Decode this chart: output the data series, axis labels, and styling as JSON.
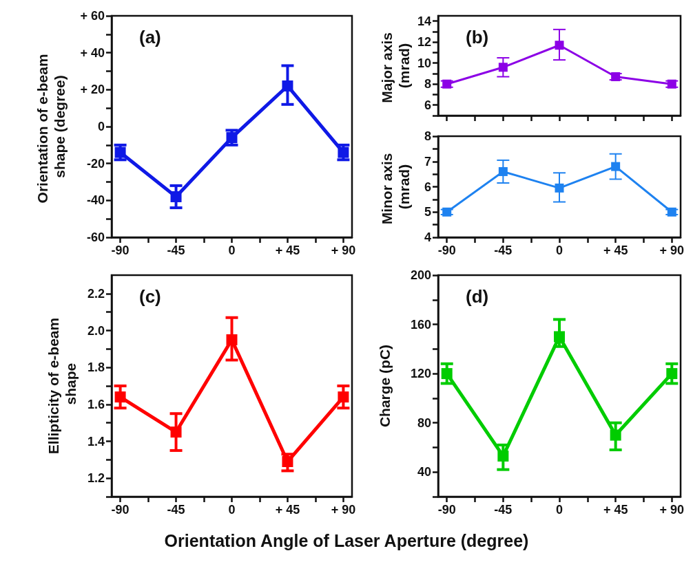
{
  "chart_data": [
    {
      "type": "line",
      "ylabel": "Orientation of e-beam shape (degree)",
      "annotations": [
        "(a)"
      ],
      "marker": "square",
      "line_style": "solid",
      "grid": false,
      "x": [
        -90,
        -45,
        0,
        45,
        90
      ],
      "xlim": [
        -97,
        97
      ],
      "xticks": [
        -90,
        {
          "value": -67.5,
          "label": null
        },
        -45,
        {
          "value": -22.5,
          "label": null
        },
        0,
        {
          "value": 22.5,
          "label": null
        },
        {
          "value": 45,
          "label": "+ 45"
        },
        {
          "value": 67.5,
          "label": null
        },
        {
          "value": 90,
          "label": "+ 90"
        }
      ],
      "ylim": [
        -60,
        60
      ],
      "yticks": [
        -60,
        {
          "value": -50,
          "label": null
        },
        -40,
        {
          "value": -30,
          "label": null
        },
        -20,
        {
          "value": -10,
          "label": null
        },
        0,
        {
          "value": 10,
          "label": null
        },
        {
          "value": 20,
          "label": "+ 20"
        },
        {
          "value": 30,
          "label": null
        },
        {
          "value": 40,
          "label": "+ 40"
        },
        {
          "value": 50,
          "label": null
        },
        {
          "value": 60,
          "label": "+ 60"
        }
      ],
      "series": [
        {
          "color": "#0f19e6",
          "values": [
            -14,
            -38,
            -6,
            22,
            -14
          ],
          "errors": [
            4,
            6,
            4,
            [
              12,
              33
            ],
            4
          ]
        }
      ]
    },
    {
      "type": "line",
      "ylabel": "Major axis (mrad)",
      "annotations": [
        "(b)"
      ],
      "marker": "square",
      "line_style": "solid",
      "grid": false,
      "tick_labels": "y",
      "x": [
        -90,
        -45,
        0,
        45,
        90
      ],
      "xlim": [
        -97,
        97
      ],
      "xticks": [
        {
          "value": -90,
          "label": null
        },
        {
          "value": -67.5,
          "label": null
        },
        {
          "value": -45,
          "label": null
        },
        {
          "value": -22.5,
          "label": null
        },
        {
          "value": 0,
          "label": null
        },
        {
          "value": 22.5,
          "label": null
        },
        {
          "value": 45,
          "label": null
        },
        {
          "value": 67.5,
          "label": null
        },
        {
          "value": 90,
          "label": null
        }
      ],
      "ylim": [
        5,
        14.5
      ],
      "yticks": [
        {
          "value": 5,
          "label": null
        },
        6,
        {
          "value": 7,
          "label": null
        },
        8,
        {
          "value": 9,
          "label": null
        },
        10,
        {
          "value": 11,
          "label": null
        },
        12,
        {
          "value": 13,
          "label": null
        },
        14
      ],
      "series": [
        {
          "color": "#8c00e6",
          "values": [
            8.0,
            9.6,
            11.7,
            8.7,
            8.0
          ],
          "errors": [
            0.3,
            [
              8.7,
              10.5
            ],
            [
              10.3,
              13.2
            ],
            0.3,
            0.3
          ]
        }
      ]
    },
    {
      "type": "line",
      "ylabel": "Minor axis (mrad)",
      "marker": "square",
      "line_style": "solid",
      "grid": false,
      "x": [
        -90,
        -45,
        0,
        45,
        90
      ],
      "xlim": [
        -97,
        97
      ],
      "xticks": [
        -90,
        {
          "value": -67.5,
          "label": null
        },
        -45,
        {
          "value": -22.5,
          "label": null
        },
        0,
        {
          "value": 22.5,
          "label": null
        },
        {
          "value": 45,
          "label": "+ 45"
        },
        {
          "value": 67.5,
          "label": null
        },
        {
          "value": 90,
          "label": "+ 90"
        }
      ],
      "ylim": [
        4,
        8
      ],
      "yticks": [
        4,
        {
          "value": 4.5,
          "label": null
        },
        5,
        {
          "value": 5.5,
          "label": null
        },
        6,
        {
          "value": 6.5,
          "label": null
        },
        7,
        {
          "value": 7.5,
          "label": null
        },
        8
      ],
      "series": [
        {
          "color": "#1e82f0",
          "values": [
            5.0,
            6.6,
            5.95,
            6.8,
            5.0
          ],
          "errors": [
            0.1,
            [
              6.15,
              7.05
            ],
            [
              5.4,
              6.55
            ],
            [
              6.3,
              7.3
            ],
            0.1
          ]
        }
      ]
    },
    {
      "type": "line",
      "ylabel": "Ellipticity of e-beam shape",
      "xlabel": "Orientation Angle of Laser Aperture (degree)",
      "annotations": [
        "(c)"
      ],
      "marker": "square",
      "line_style": "solid",
      "grid": false,
      "x": [
        -90,
        -45,
        0,
        45,
        90
      ],
      "xlim": [
        -97,
        97
      ],
      "xticks": [
        -90,
        {
          "value": -67.5,
          "label": null
        },
        -45,
        {
          "value": -22.5,
          "label": null
        },
        0,
        {
          "value": 22.5,
          "label": null
        },
        {
          "value": 45,
          "label": "+ 45"
        },
        {
          "value": 67.5,
          "label": null
        },
        {
          "value": 90,
          "label": "+ 90"
        }
      ],
      "ylim": [
        1.1,
        2.3
      ],
      "yticks": [
        {
          "value": 1.1,
          "label": null
        },
        {
          "value": 1.2,
          "label": "1.2"
        },
        {
          "value": 1.3,
          "label": null
        },
        {
          "value": 1.4,
          "label": "1.4"
        },
        {
          "value": 1.5,
          "label": null
        },
        {
          "value": 1.6,
          "label": "1.6"
        },
        {
          "value": 1.7,
          "label": null
        },
        {
          "value": 1.8,
          "label": "1.8"
        },
        {
          "value": 1.9,
          "label": null
        },
        {
          "value": 2.0,
          "label": "2.0"
        },
        {
          "value": 2.1,
          "label": null
        },
        {
          "value": 2.2,
          "label": "2.2"
        }
      ],
      "series": [
        {
          "color": "#ff0000",
          "values": [
            1.64,
            1.45,
            1.95,
            1.29,
            1.64
          ],
          "errors": [
            0.06,
            0.1,
            [
              1.84,
              2.07
            ],
            [
              1.24,
              1.33
            ],
            0.06
          ]
        }
      ]
    },
    {
      "type": "line",
      "ylabel": "Charge (pC)",
      "annotations": [
        "(d)"
      ],
      "marker": "square",
      "line_style": "solid",
      "grid": false,
      "x": [
        -90,
        -45,
        0,
        45,
        90
      ],
      "xlim": [
        -97,
        97
      ],
      "xticks": [
        -90,
        {
          "value": -67.5,
          "label": null
        },
        -45,
        {
          "value": -22.5,
          "label": null
        },
        0,
        {
          "value": 22.5,
          "label": null
        },
        {
          "value": 45,
          "label": "+ 45"
        },
        {
          "value": 67.5,
          "label": null
        },
        {
          "value": 90,
          "label": "+ 90"
        }
      ],
      "ylim": [
        20,
        200
      ],
      "yticks": [
        {
          "value": 20,
          "label": null
        },
        40,
        {
          "value": 60,
          "label": null
        },
        80,
        {
          "value": 100,
          "label": null
        },
        120,
        {
          "value": 140,
          "label": null
        },
        160,
        {
          "value": 180,
          "label": null
        },
        200
      ],
      "series": [
        {
          "color": "#00cc00",
          "values": [
            120,
            53,
            150,
            70,
            120
          ],
          "errors": [
            8,
            [
              42,
              62
            ],
            [
              142,
              164
            ],
            [
              58,
              80
            ],
            8
          ]
        }
      ]
    }
  ]
}
